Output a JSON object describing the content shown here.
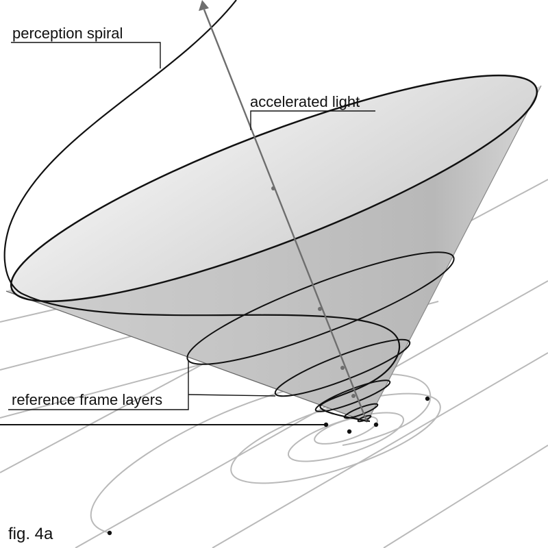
{
  "labels": {
    "perception_spiral": "perception spiral",
    "accelerated_light": "accelerated light",
    "reference_frame_layers": "reference frame layers"
  },
  "caption": "fig. 4a",
  "colors": {
    "cone_fill_light": "#e2e2e2",
    "cone_fill_dark": "#b4b4b4",
    "plane_lines": "#b9b9b9",
    "ink": "#111111",
    "arrow": "#6e6e6e"
  }
}
